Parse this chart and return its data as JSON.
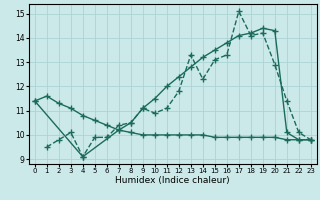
{
  "xlabel": "Humidex (Indice chaleur)",
  "xlim": [
    -0.5,
    23.5
  ],
  "ylim": [
    8.8,
    15.4
  ],
  "yticks": [
    9,
    10,
    11,
    12,
    13,
    14,
    15
  ],
  "xticks": [
    0,
    1,
    2,
    3,
    4,
    5,
    6,
    7,
    8,
    9,
    10,
    11,
    12,
    13,
    14,
    15,
    16,
    17,
    18,
    19,
    20,
    21,
    22,
    23
  ],
  "bg_color": "#cce9e9",
  "grid_color": "#aad4d4",
  "line_color": "#1a6b5a",
  "line1_x": [
    0,
    1,
    2,
    3,
    4,
    5,
    6,
    7,
    8,
    9,
    10,
    11,
    12,
    13,
    14,
    15,
    16,
    17,
    18,
    19,
    20,
    21,
    22,
    23
  ],
  "line1_y": [
    11.4,
    11.6,
    11.3,
    11.1,
    10.8,
    10.6,
    10.4,
    10.2,
    10.1,
    10.0,
    10.0,
    10.0,
    10.0,
    10.0,
    10.0,
    9.9,
    9.9,
    9.9,
    9.9,
    9.9,
    9.9,
    9.8,
    9.8,
    9.8
  ],
  "line2_x": [
    1,
    2,
    3,
    4,
    5,
    6,
    7,
    8,
    9,
    10,
    11,
    12,
    13,
    14,
    15,
    16,
    17,
    18,
    19,
    20,
    21,
    22,
    23
  ],
  "line2_y": [
    9.5,
    9.8,
    10.1,
    9.1,
    9.9,
    9.9,
    10.4,
    10.5,
    11.1,
    10.9,
    11.1,
    11.8,
    13.3,
    12.3,
    13.1,
    13.3,
    15.1,
    14.1,
    14.2,
    12.9,
    11.4,
    10.1,
    9.8
  ],
  "line3_x": [
    0,
    4,
    7,
    8,
    9,
    10,
    11,
    12,
    13,
    14,
    15,
    16,
    17,
    18,
    19,
    20,
    21,
    22,
    23
  ],
  "line3_y": [
    11.4,
    9.1,
    10.2,
    10.5,
    11.1,
    11.5,
    12.0,
    12.4,
    12.8,
    13.2,
    13.5,
    13.8,
    14.1,
    14.2,
    14.4,
    14.3,
    10.1,
    9.8,
    9.8
  ],
  "marker": "+",
  "markersize": 4,
  "linewidth": 1.0,
  "tick_fontsize": 5.5,
  "xlabel_fontsize": 6.5
}
